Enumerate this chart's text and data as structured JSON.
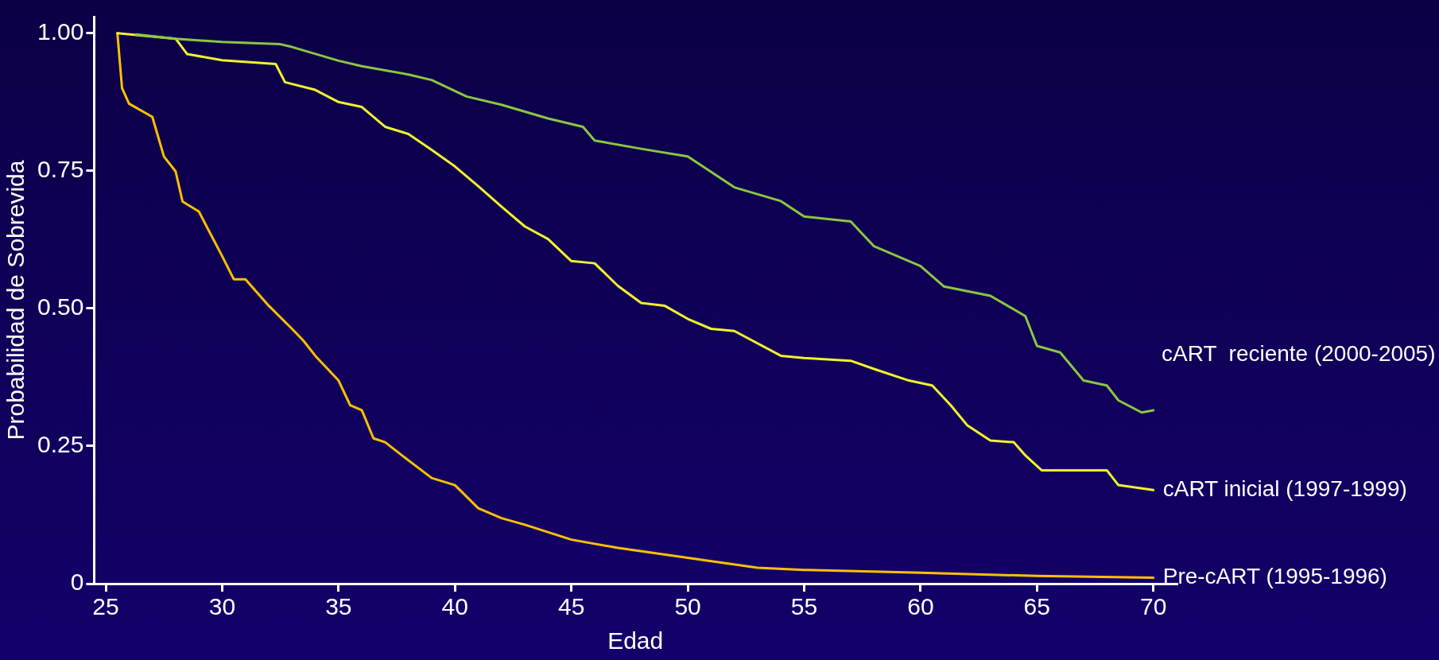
{
  "chart_data": {
    "type": "line",
    "xlabel": "Edad",
    "ylabel": "Probabilidad de Sobrevida",
    "xlim": [
      24.5,
      71
    ],
    "ylim": [
      0,
      1.03
    ],
    "xticks": [
      25,
      30,
      35,
      40,
      45,
      50,
      55,
      60,
      65,
      70
    ],
    "yticks": [
      0,
      {
        "value": 0.25,
        "label": "0.25"
      },
      {
        "value": 0.5,
        "label": "0.50"
      },
      {
        "value": 0.75,
        "label": "0.75"
      },
      {
        "value": 1,
        "label": "1.00"
      }
    ],
    "grid": false,
    "legend": false,
    "marker": "none",
    "line_style": "solid",
    "series": [
      {
        "name": "cART  reciente (2000-2005)",
        "color": "#8cc63f",
        "x": [
          26.3,
          28,
          30,
          32.5,
          33,
          35,
          36,
          38,
          39,
          40.5,
          42,
          44,
          45.5,
          46,
          48,
          50,
          52,
          54,
          55,
          57,
          58,
          60,
          61,
          63,
          64.5,
          65,
          66,
          67,
          68,
          68.5,
          69.5,
          70
        ],
        "values": [
          0.998,
          0.99,
          0.984,
          0.98,
          0.975,
          0.95,
          0.94,
          0.925,
          0.915,
          0.885,
          0.87,
          0.845,
          0.83,
          0.805,
          0.79,
          0.776,
          0.72,
          0.695,
          0.667,
          0.658,
          0.613,
          0.577,
          0.54,
          0.523,
          0.486,
          0.432,
          0.42,
          0.369,
          0.36,
          0.333,
          0.311,
          0.315
        ]
      },
      {
        "name": "cART inicial (1997-1999)",
        "color": "#f2f230",
        "x": [
          25.5,
          28,
          28.5,
          30,
          32.3,
          32.7,
          34,
          35,
          36,
          37,
          38,
          39,
          40,
          41,
          42,
          43,
          44,
          45,
          46,
          47,
          48,
          49,
          50,
          51,
          52,
          54,
          55,
          57,
          58,
          59.5,
          60.5,
          61.3,
          62,
          63,
          64,
          64.5,
          65.2,
          68,
          68.5,
          70
        ],
        "values": [
          1,
          0.99,
          0.962,
          0.951,
          0.944,
          0.911,
          0.897,
          0.875,
          0.866,
          0.83,
          0.817,
          0.788,
          0.758,
          0.722,
          0.685,
          0.649,
          0.626,
          0.586,
          0.582,
          0.541,
          0.51,
          0.505,
          0.481,
          0.463,
          0.459,
          0.414,
          0.41,
          0.405,
          0.39,
          0.369,
          0.36,
          0.324,
          0.288,
          0.26,
          0.257,
          0.233,
          0.206,
          0.206,
          0.179,
          0.17
        ]
      },
      {
        "name": "Pre-cART (1995-1996)",
        "color": "#ffc000",
        "x": [
          25.5,
          25.7,
          26,
          27,
          27.5,
          28,
          28.3,
          29,
          30,
          30.5,
          31,
          32,
          33,
          33.5,
          34,
          35,
          35.5,
          36,
          36.5,
          37,
          38,
          39,
          40,
          41,
          42,
          43,
          45,
          47,
          50,
          53,
          55,
          60,
          65,
          70
        ],
        "values": [
          1,
          0.9,
          0.872,
          0.848,
          0.776,
          0.749,
          0.694,
          0.676,
          0.595,
          0.553,
          0.553,
          0.505,
          0.463,
          0.441,
          0.414,
          0.369,
          0.324,
          0.315,
          0.264,
          0.257,
          0.224,
          0.192,
          0.179,
          0.137,
          0.119,
          0.107,
          0.08,
          0.065,
          0.047,
          0.029,
          0.025,
          0.02,
          0.014,
          0.011
        ]
      }
    ]
  }
}
